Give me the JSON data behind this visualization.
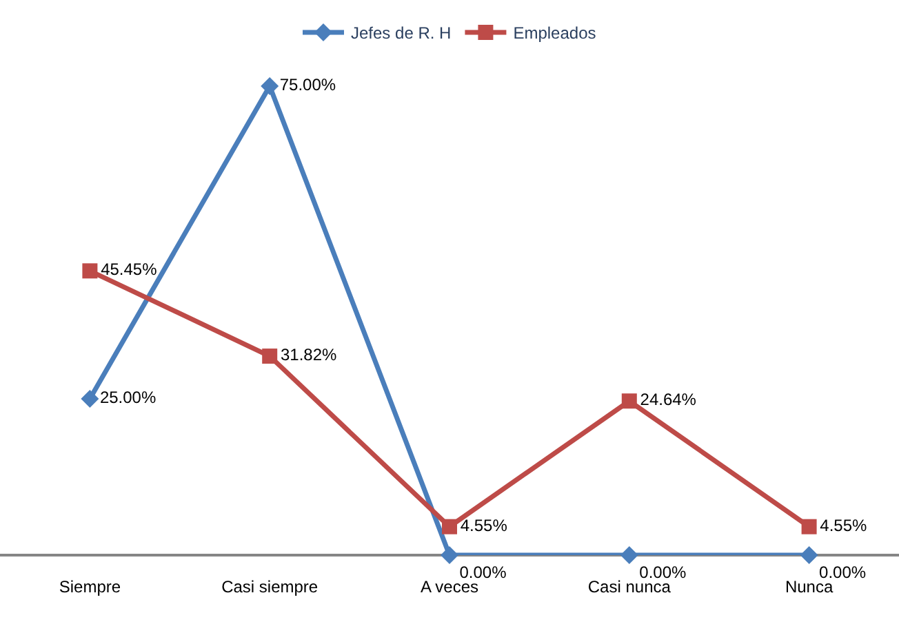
{
  "chart_data": {
    "type": "line",
    "categories": [
      "Siempre",
      "Casi siempre",
      "A veces",
      "Casi nunca",
      "Nunca"
    ],
    "series": [
      {
        "name": "Jefes de R. H",
        "color": "#4a7ebb",
        "marker": "diamond",
        "values": [
          25,
          75,
          0,
          0,
          0
        ],
        "value_labels": [
          "25.00%",
          "75.00%",
          "0.00%",
          "0.00%",
          "0.00%"
        ]
      },
      {
        "name": "Empleados",
        "color": "#be4b48",
        "marker": "square",
        "values": [
          45.45,
          31.82,
          4.55,
          24.64,
          4.55
        ],
        "value_labels": [
          "45.45%",
          "31.82%",
          "4.55%",
          "24.64%",
          "4.55%"
        ]
      }
    ],
    "tick_labels": "x",
    "legend": "top",
    "line_style": "solid"
  }
}
